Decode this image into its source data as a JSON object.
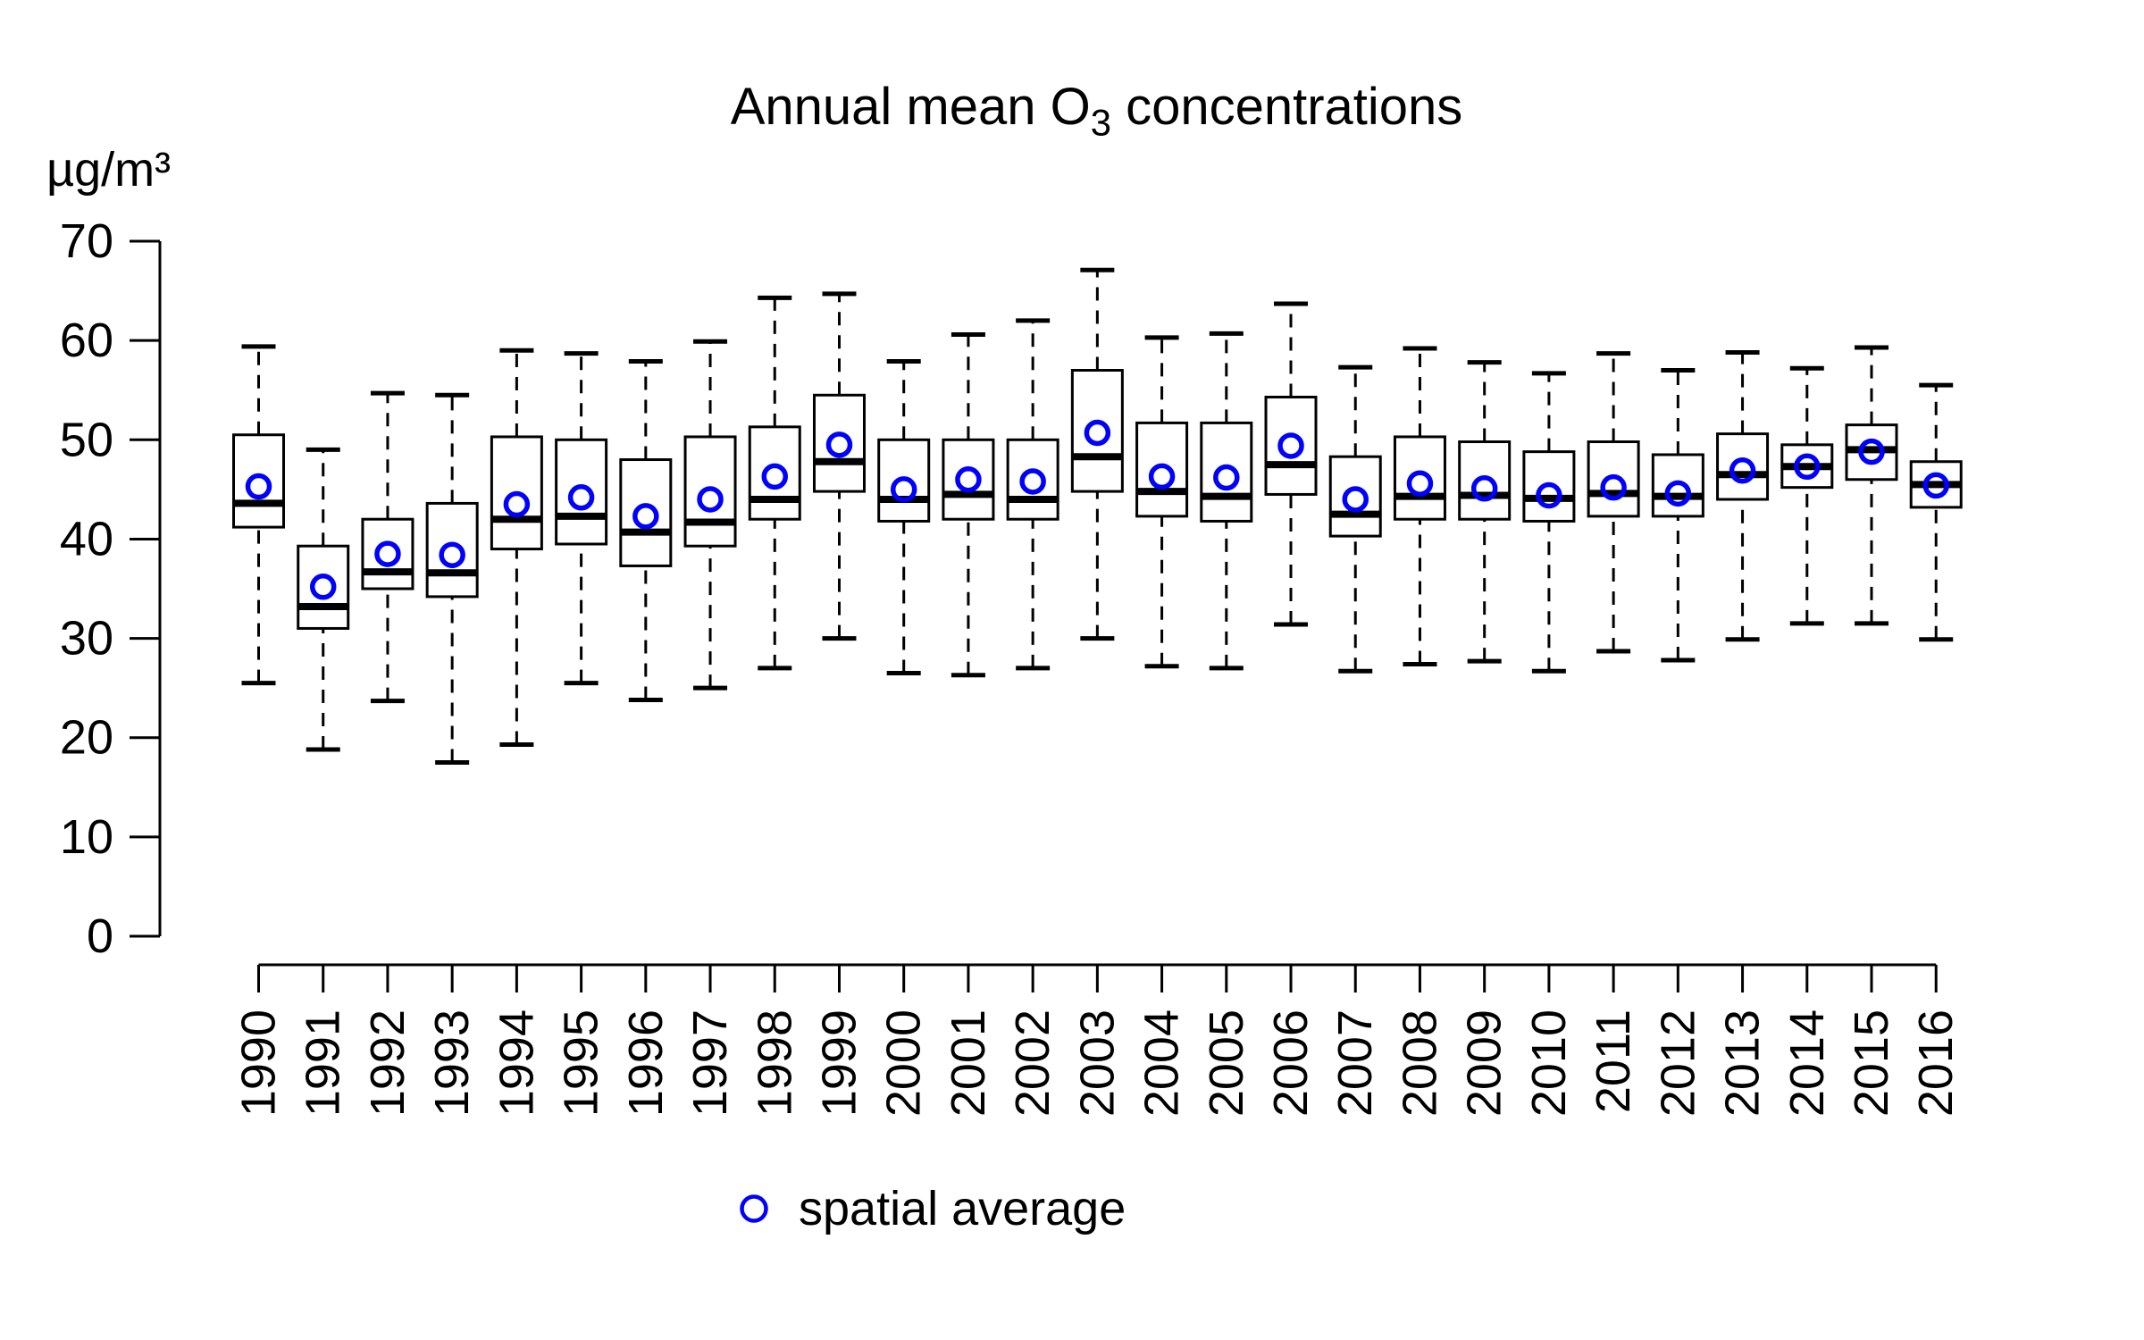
{
  "chart_data": {
    "type": "boxplot",
    "title": "Annual mean O3 concentrations",
    "title_parts": {
      "pre": "Annual mean O",
      "sub": "3",
      "post": " concentrations"
    },
    "ylabel": "µg/m³",
    "legend": {
      "marker": "open-circle",
      "marker_color": "#0000ff",
      "label": "spatial average"
    },
    "ylim": [
      0,
      70
    ],
    "yticks": [
      0,
      10,
      20,
      30,
      40,
      50,
      60,
      70
    ],
    "grid": "off",
    "legend_position": "bottom-center",
    "categories": [
      "1990",
      "1991",
      "1992",
      "1993",
      "1994",
      "1995",
      "1996",
      "1997",
      "1998",
      "1999",
      "2000",
      "2001",
      "2002",
      "2003",
      "2004",
      "2005",
      "2006",
      "2007",
      "2008",
      "2009",
      "2010",
      "2011",
      "2012",
      "2013",
      "2014",
      "2015",
      "2016"
    ],
    "stats": [
      {
        "year": "1990",
        "whisker_low": 25.5,
        "q1": 41.2,
        "median": 43.6,
        "q3": 50.5,
        "whisker_high": 59.4,
        "spatial_average": 45.3
      },
      {
        "year": "1991",
        "whisker_low": 18.8,
        "q1": 31.0,
        "median": 33.2,
        "q3": 39.3,
        "whisker_high": 49.0,
        "spatial_average": 35.2
      },
      {
        "year": "1992",
        "whisker_low": 23.7,
        "q1": 35.0,
        "median": 36.7,
        "q3": 42.0,
        "whisker_high": 54.7,
        "spatial_average": 38.5
      },
      {
        "year": "1993",
        "whisker_low": 17.5,
        "q1": 34.2,
        "median": 36.6,
        "q3": 43.6,
        "whisker_high": 54.5,
        "spatial_average": 38.4
      },
      {
        "year": "1994",
        "whisker_low": 19.3,
        "q1": 39.0,
        "median": 42.0,
        "q3": 50.3,
        "whisker_high": 59.0,
        "spatial_average": 43.5
      },
      {
        "year": "1995",
        "whisker_low": 25.5,
        "q1": 39.5,
        "median": 42.3,
        "q3": 50.0,
        "whisker_high": 58.7,
        "spatial_average": 44.2
      },
      {
        "year": "1996",
        "whisker_low": 23.8,
        "q1": 37.3,
        "median": 40.7,
        "q3": 48.0,
        "whisker_high": 57.9,
        "spatial_average": 42.3
      },
      {
        "year": "1997",
        "whisker_low": 25.0,
        "q1": 39.3,
        "median": 41.7,
        "q3": 50.3,
        "whisker_high": 59.9,
        "spatial_average": 44.0
      },
      {
        "year": "1998",
        "whisker_low": 27.0,
        "q1": 42.0,
        "median": 44.0,
        "q3": 51.3,
        "whisker_high": 64.3,
        "spatial_average": 46.3
      },
      {
        "year": "1999",
        "whisker_low": 30.0,
        "q1": 44.8,
        "median": 47.8,
        "q3": 54.5,
        "whisker_high": 64.7,
        "spatial_average": 49.5
      },
      {
        "year": "2000",
        "whisker_low": 26.5,
        "q1": 41.8,
        "median": 44.0,
        "q3": 50.0,
        "whisker_high": 57.9,
        "spatial_average": 45.0
      },
      {
        "year": "2001",
        "whisker_low": 26.3,
        "q1": 42.0,
        "median": 44.5,
        "q3": 50.0,
        "whisker_high": 60.6,
        "spatial_average": 46.0
      },
      {
        "year": "2002",
        "whisker_low": 27.0,
        "q1": 42.0,
        "median": 44.0,
        "q3": 50.0,
        "whisker_high": 62.0,
        "spatial_average": 45.8
      },
      {
        "year": "2003",
        "whisker_low": 30.0,
        "q1": 44.8,
        "median": 48.3,
        "q3": 57.0,
        "whisker_high": 67.1,
        "spatial_average": 50.7
      },
      {
        "year": "2004",
        "whisker_low": 27.2,
        "q1": 42.3,
        "median": 44.8,
        "q3": 51.7,
        "whisker_high": 60.3,
        "spatial_average": 46.3
      },
      {
        "year": "2005",
        "whisker_low": 27.0,
        "q1": 41.8,
        "median": 44.3,
        "q3": 51.7,
        "whisker_high": 60.7,
        "spatial_average": 46.2
      },
      {
        "year": "2006",
        "whisker_low": 31.4,
        "q1": 44.5,
        "median": 47.5,
        "q3": 54.3,
        "whisker_high": 63.7,
        "spatial_average": 49.4
      },
      {
        "year": "2007",
        "whisker_low": 26.7,
        "q1": 40.3,
        "median": 42.5,
        "q3": 48.3,
        "whisker_high": 57.3,
        "spatial_average": 44.0
      },
      {
        "year": "2008",
        "whisker_low": 27.4,
        "q1": 42.0,
        "median": 44.3,
        "q3": 50.3,
        "whisker_high": 59.2,
        "spatial_average": 45.6
      },
      {
        "year": "2009",
        "whisker_low": 27.7,
        "q1": 42.0,
        "median": 44.4,
        "q3": 49.8,
        "whisker_high": 57.8,
        "spatial_average": 45.1
      },
      {
        "year": "2010",
        "whisker_low": 26.7,
        "q1": 41.8,
        "median": 44.1,
        "q3": 48.8,
        "whisker_high": 56.7,
        "spatial_average": 44.4
      },
      {
        "year": "2011",
        "whisker_low": 28.7,
        "q1": 42.3,
        "median": 44.6,
        "q3": 49.8,
        "whisker_high": 58.7,
        "spatial_average": 45.2
      },
      {
        "year": "2012",
        "whisker_low": 27.8,
        "q1": 42.3,
        "median": 44.3,
        "q3": 48.5,
        "whisker_high": 57.0,
        "spatial_average": 44.6
      },
      {
        "year": "2013",
        "whisker_low": 29.9,
        "q1": 44.0,
        "median": 46.5,
        "q3": 50.6,
        "whisker_high": 58.8,
        "spatial_average": 46.9
      },
      {
        "year": "2014",
        "whisker_low": 31.5,
        "q1": 45.2,
        "median": 47.3,
        "q3": 49.5,
        "whisker_high": 57.2,
        "spatial_average": 47.3
      },
      {
        "year": "2015",
        "whisker_low": 31.5,
        "q1": 46.0,
        "median": 49.0,
        "q3": 51.5,
        "whisker_high": 59.3,
        "spatial_average": 48.8
      },
      {
        "year": "2016",
        "whisker_low": 29.9,
        "q1": 43.2,
        "median": 45.5,
        "q3": 47.8,
        "whisker_high": 55.5,
        "spatial_average": 45.4
      }
    ],
    "colors": {
      "box_border": "#000000",
      "median": "#000000",
      "whisker": "#000000",
      "box_fill": "#ffffff",
      "average_marker": "#0000ff",
      "text": "#000000"
    }
  }
}
